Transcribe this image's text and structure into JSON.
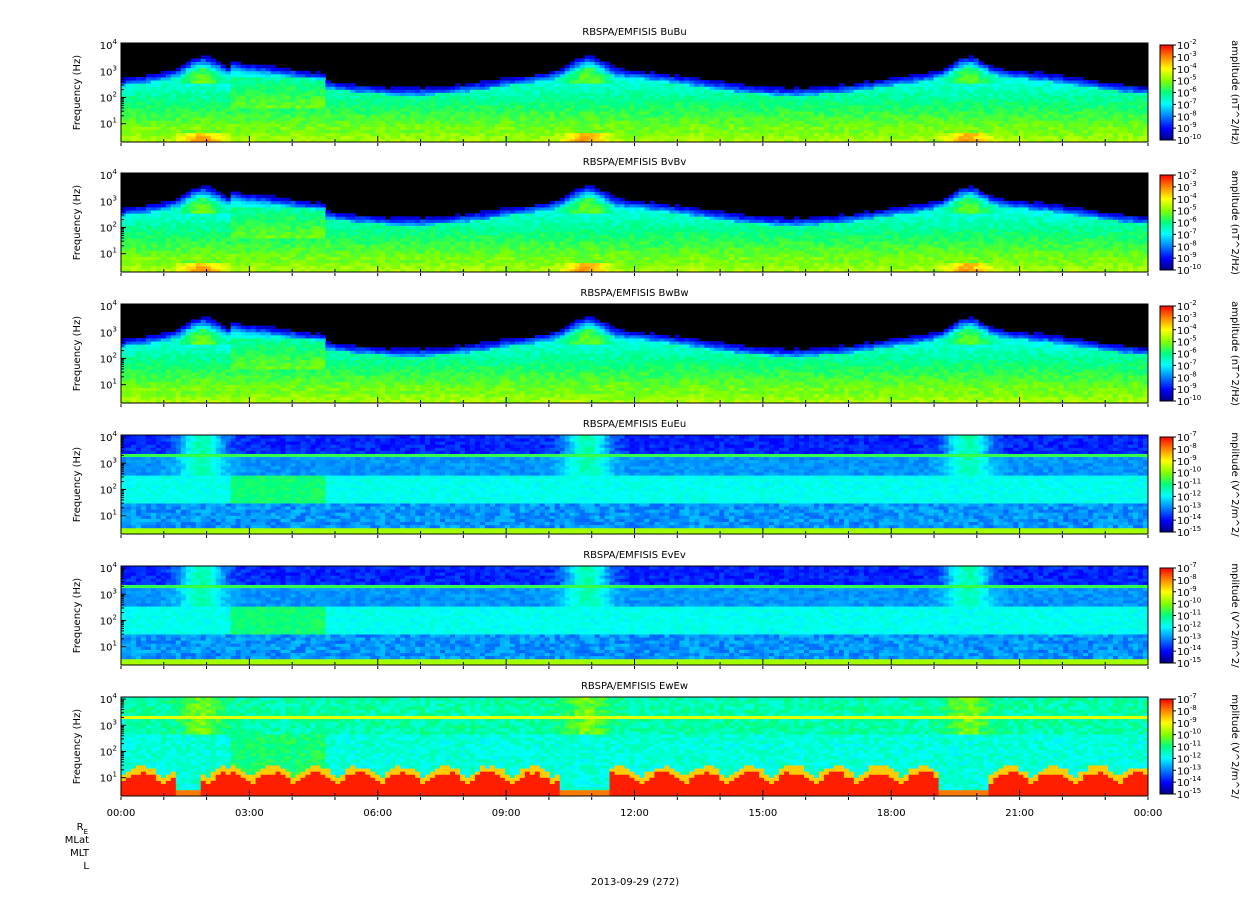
{
  "chart_data": {
    "type": "heatmap",
    "figure": "stacked spectrograms",
    "x_axis": {
      "range": [
        "2013-09-29T00:00",
        "2013-09-30T00:00"
      ],
      "tick_labels": [
        "00:00",
        "03:00",
        "06:00",
        "09:00",
        "12:00",
        "15:00",
        "18:00",
        "21:00",
        "00:00"
      ],
      "date_label": "2013-09-29 (272)"
    },
    "ephemeris_labels": [
      "R",
      "MLat",
      "MLT",
      "L"
    ],
    "ephemeris_subscript": "E",
    "panels": [
      {
        "title": "RBSPA/EMFISIS  BuBu",
        "ylabel": "Frequency (Hz)",
        "y_scale": "log",
        "ylim": [
          2,
          12000
        ],
        "y_ticks": [
          1,
          2,
          3,
          4
        ],
        "colorbar_label": "amplitude (nT^2/Hz)",
        "colorbar_exponents": [
          -2,
          -3,
          -4,
          -5,
          -6,
          -7,
          -8,
          -9,
          -10
        ],
        "zlim": [
          1e-10,
          0.01
        ],
        "kind": "B"
      },
      {
        "title": "RBSPA/EMFISIS  BvBv",
        "ylabel": "Frequency (Hz)",
        "y_scale": "log",
        "ylim": [
          2,
          12000
        ],
        "y_ticks": [
          1,
          2,
          3,
          4
        ],
        "colorbar_label": "amplitude (nT^2/Hz)",
        "colorbar_exponents": [
          -2,
          -3,
          -4,
          -5,
          -6,
          -7,
          -8,
          -9,
          -10
        ],
        "zlim": [
          1e-10,
          0.01
        ],
        "kind": "B"
      },
      {
        "title": "RBSPA/EMFISIS  BwBw",
        "ylabel": "Frequency (Hz)",
        "y_scale": "log",
        "ylim": [
          2,
          12000
        ],
        "y_ticks": [
          1,
          2,
          3,
          4
        ],
        "colorbar_label": "amplitude (nT^2/Hz)",
        "colorbar_exponents": [
          -2,
          -3,
          -4,
          -5,
          -6,
          -7,
          -8,
          -9,
          -10
        ],
        "zlim": [
          1e-10,
          0.01
        ],
        "kind": "Bw"
      },
      {
        "title": "RBSPA/EMFISIS  EuEu",
        "ylabel": "Frequency (Hz)",
        "y_scale": "log",
        "ylim": [
          2,
          12000
        ],
        "y_ticks": [
          1,
          2,
          3,
          4
        ],
        "colorbar_label": "mplitude (V^2/m^2/",
        "colorbar_exponents": [
          -7,
          -8,
          -9,
          -10,
          -11,
          -12,
          -13,
          -14,
          -15
        ],
        "zlim": [
          1e-15,
          1e-07
        ],
        "kind": "E"
      },
      {
        "title": "RBSPA/EMFISIS  EvEv",
        "ylabel": "Frequency (Hz)",
        "y_scale": "log",
        "ylim": [
          2,
          12000
        ],
        "y_ticks": [
          1,
          2,
          3,
          4
        ],
        "colorbar_label": "mplitude (V^2/m^2/",
        "colorbar_exponents": [
          -7,
          -8,
          -9,
          -10,
          -11,
          -12,
          -13,
          -14,
          -15
        ],
        "zlim": [
          1e-15,
          1e-07
        ],
        "kind": "E"
      },
      {
        "title": "RBSPA/EMFISIS  EwEw",
        "ylabel": "Frequency (Hz)",
        "y_scale": "log",
        "ylim": [
          2,
          12000
        ],
        "y_ticks": [
          1,
          2,
          3,
          4
        ],
        "colorbar_label": "mplitude (V^2/m^2/",
        "colorbar_exponents": [
          -7,
          -8,
          -9,
          -10,
          -11,
          -12,
          -13,
          -14,
          -15
        ],
        "zlim": [
          1e-15,
          1e-07
        ],
        "kind": "Ew"
      }
    ],
    "colormap": [
      "#000080",
      "#0000ff",
      "#0080ff",
      "#00ffff",
      "#00ff80",
      "#80ff00",
      "#ffff00",
      "#ff8000",
      "#ff0000"
    ],
    "background_color": "#000000"
  }
}
